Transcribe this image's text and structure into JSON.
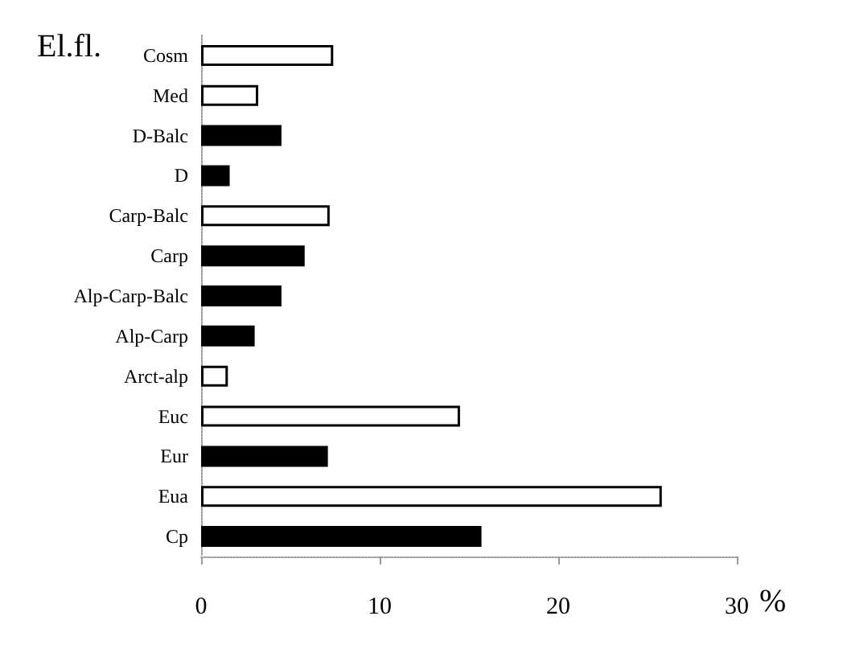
{
  "chart_data": {
    "type": "bar",
    "orientation": "horizontal",
    "title": "El.fl.",
    "xlabel": "%",
    "categories": [
      "Cosm",
      "Med",
      "D-Balc",
      "D",
      "Carp-Balc",
      "Carp",
      "Alp-Carp-Balc",
      "Alp-Carp",
      "Arct-alp",
      "Euc",
      "Eur",
      "Eua",
      "Cp"
    ],
    "values": [
      7.4,
      3.2,
      4.5,
      1.6,
      7.2,
      5.8,
      4.5,
      3.0,
      1.5,
      14.5,
      7.1,
      25.8,
      15.7
    ],
    "colors": [
      "#ffffff",
      "#ffffff",
      "#000000",
      "#000000",
      "#ffffff",
      "#000000",
      "#000000",
      "#000000",
      "#ffffff",
      "#ffffff",
      "#000000",
      "#ffffff",
      "#000000"
    ],
    "xlim": [
      0,
      30
    ],
    "xticks": [
      0,
      10,
      20,
      30
    ],
    "grid": false
  }
}
